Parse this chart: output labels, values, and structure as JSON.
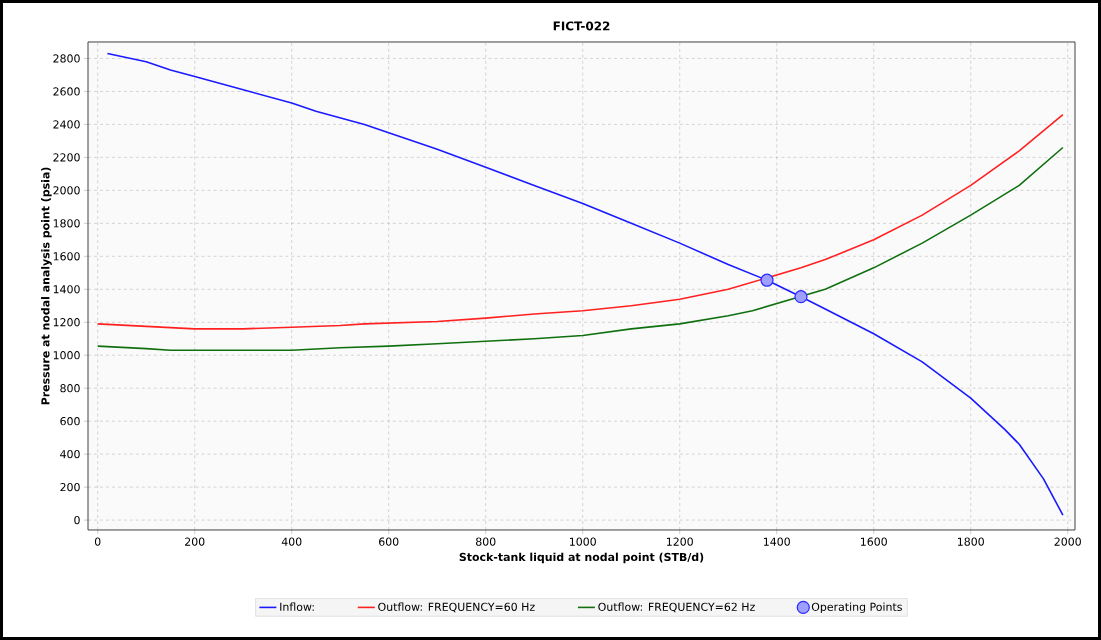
{
  "chart_data": {
    "type": "line",
    "title": "FICT-022",
    "xlabel": "Stock-tank liquid at nodal point (STB/d)",
    "ylabel": "Pressure at nodal analysis point (psia)",
    "xlim": [
      -20,
      2015
    ],
    "ylim": [
      -60,
      2900
    ],
    "xticks": [
      0,
      200,
      400,
      600,
      800,
      1000,
      1200,
      1400,
      1600,
      1800,
      2000
    ],
    "yticks": [
      0,
      200,
      400,
      600,
      800,
      1000,
      1200,
      1400,
      1600,
      1800,
      2000,
      2200,
      2400,
      2600,
      2800
    ],
    "grid": true,
    "legend": "bottom",
    "line_style": "solid",
    "marker": "none",
    "series": [
      {
        "name": "Inflow:",
        "color": "#1a1aff",
        "x": [
          20,
          100,
          150,
          200,
          300,
          400,
          450,
          550,
          600,
          700,
          800,
          900,
          1000,
          1100,
          1200,
          1300,
          1380,
          1450,
          1500,
          1600,
          1700,
          1800,
          1870,
          1900,
          1950,
          1990
        ],
        "values": [
          2830,
          2780,
          2730,
          2690,
          2610,
          2530,
          2480,
          2400,
          2350,
          2250,
          2140,
          2030,
          1920,
          1800,
          1680,
          1550,
          1455,
          1355,
          1280,
          1130,
          960,
          740,
          550,
          460,
          250,
          30
        ]
      },
      {
        "name": "Outflow: FREQUENCY=60 Hz",
        "color": "#ff2020",
        "x": [
          0,
          100,
          200,
          300,
          400,
          500,
          550,
          600,
          700,
          800,
          900,
          1000,
          1100,
          1200,
          1300,
          1450,
          1500,
          1600,
          1700,
          1800,
          1900,
          1990
        ],
        "values": [
          1190,
          1175,
          1160,
          1160,
          1170,
          1180,
          1190,
          1195,
          1205,
          1225,
          1250,
          1270,
          1300,
          1340,
          1400,
          1530,
          1580,
          1700,
          1850,
          2030,
          2240,
          2460
        ]
      },
      {
        "name": "Outflow: FREQUENCY=62 Hz",
        "color": "#107010",
        "x": [
          0,
          100,
          150,
          200,
          300,
          400,
          500,
          600,
          700,
          800,
          900,
          1000,
          1100,
          1200,
          1300,
          1350,
          1500,
          1600,
          1700,
          1800,
          1900,
          1990
        ],
        "values": [
          1055,
          1040,
          1030,
          1030,
          1030,
          1030,
          1045,
          1055,
          1070,
          1085,
          1100,
          1120,
          1160,
          1190,
          1240,
          1270,
          1400,
          1530,
          1680,
          1850,
          2030,
          2260
        ]
      },
      {
        "name": "Operating Points",
        "type": "scatter",
        "marker": "circle",
        "color": "#2a2aff",
        "x": [
          1380,
          1450
        ],
        "values": [
          1455,
          1355
        ]
      }
    ]
  }
}
